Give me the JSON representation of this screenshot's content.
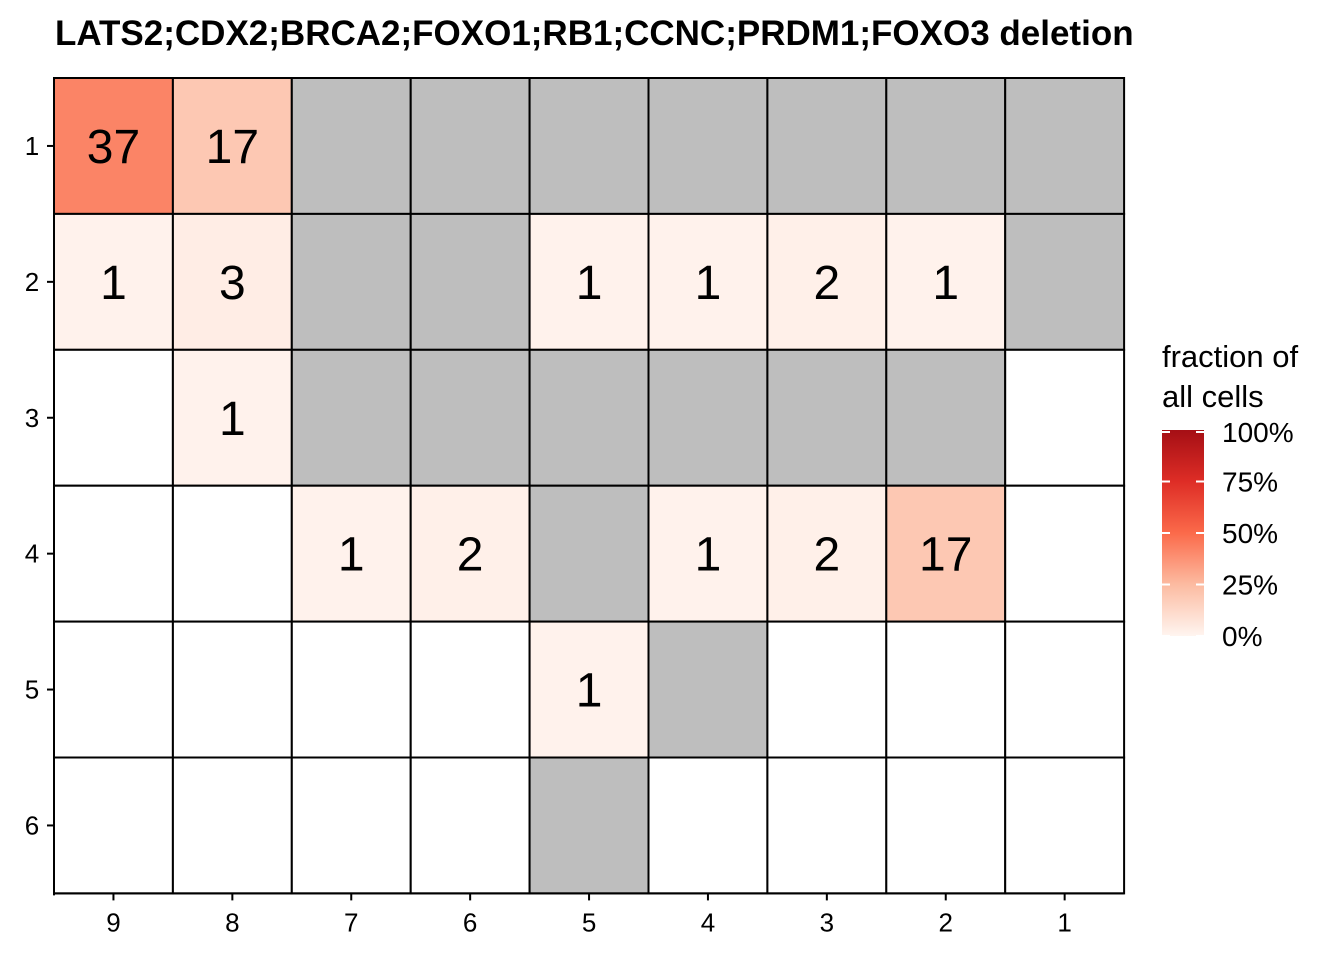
{
  "chart_data": {
    "type": "heatmap",
    "title": "LATS2;CDX2;BRCA2;FOXO1;RB1;CCNC;PRDM1;FOXO3 deletion",
    "x_categories": [
      "9",
      "8",
      "7",
      "6",
      "5",
      "4",
      "3",
      "2",
      "1"
    ],
    "y_categories": [
      "1",
      "2",
      "3",
      "4",
      "5",
      "6"
    ],
    "missing_color": "#bebebe",
    "empty_color": "#ffffff",
    "cells": [
      {
        "x": "9",
        "y": "1",
        "value": 37
      },
      {
        "x": "8",
        "y": "1",
        "value": 17
      },
      {
        "x": "7",
        "y": "1",
        "value": null
      },
      {
        "x": "6",
        "y": "1",
        "value": null
      },
      {
        "x": "5",
        "y": "1",
        "value": null
      },
      {
        "x": "4",
        "y": "1",
        "value": null
      },
      {
        "x": "3",
        "y": "1",
        "value": null
      },
      {
        "x": "2",
        "y": "1",
        "value": null
      },
      {
        "x": "1",
        "y": "1",
        "value": null
      },
      {
        "x": "9",
        "y": "2",
        "value": 1
      },
      {
        "x": "8",
        "y": "2",
        "value": 3
      },
      {
        "x": "7",
        "y": "2",
        "value": null
      },
      {
        "x": "6",
        "y": "2",
        "value": null
      },
      {
        "x": "5",
        "y": "2",
        "value": 1
      },
      {
        "x": "4",
        "y": "2",
        "value": 1
      },
      {
        "x": "3",
        "y": "2",
        "value": 2
      },
      {
        "x": "2",
        "y": "2",
        "value": 1
      },
      {
        "x": "1",
        "y": "2",
        "value": null
      },
      {
        "x": "9",
        "y": "3",
        "value": 0
      },
      {
        "x": "8",
        "y": "3",
        "value": 1
      },
      {
        "x": "7",
        "y": "3",
        "value": null
      },
      {
        "x": "6",
        "y": "3",
        "value": null
      },
      {
        "x": "5",
        "y": "3",
        "value": null
      },
      {
        "x": "4",
        "y": "3",
        "value": null
      },
      {
        "x": "3",
        "y": "3",
        "value": null
      },
      {
        "x": "2",
        "y": "3",
        "value": null
      },
      {
        "x": "1",
        "y": "3",
        "value": 0
      },
      {
        "x": "9",
        "y": "4",
        "value": 0
      },
      {
        "x": "8",
        "y": "4",
        "value": 0
      },
      {
        "x": "7",
        "y": "4",
        "value": 1
      },
      {
        "x": "6",
        "y": "4",
        "value": 2
      },
      {
        "x": "5",
        "y": "4",
        "value": null
      },
      {
        "x": "4",
        "y": "4",
        "value": 1
      },
      {
        "x": "3",
        "y": "4",
        "value": 2
      },
      {
        "x": "2",
        "y": "4",
        "value": 17
      },
      {
        "x": "1",
        "y": "4",
        "value": 0
      },
      {
        "x": "9",
        "y": "5",
        "value": 0
      },
      {
        "x": "8",
        "y": "5",
        "value": 0
      },
      {
        "x": "7",
        "y": "5",
        "value": 0
      },
      {
        "x": "6",
        "y": "5",
        "value": 0
      },
      {
        "x": "5",
        "y": "5",
        "value": 1
      },
      {
        "x": "4",
        "y": "5",
        "value": null
      },
      {
        "x": "3",
        "y": "5",
        "value": 0
      },
      {
        "x": "2",
        "y": "5",
        "value": 0
      },
      {
        "x": "1",
        "y": "5",
        "value": 0
      },
      {
        "x": "9",
        "y": "6",
        "value": 0
      },
      {
        "x": "8",
        "y": "6",
        "value": 0
      },
      {
        "x": "7",
        "y": "6",
        "value": 0
      },
      {
        "x": "6",
        "y": "6",
        "value": 0
      },
      {
        "x": "5",
        "y": "6",
        "value": null
      },
      {
        "x": "4",
        "y": "6",
        "value": 0
      },
      {
        "x": "3",
        "y": "6",
        "value": 0
      },
      {
        "x": "2",
        "y": "6",
        "value": 0
      },
      {
        "x": "1",
        "y": "6",
        "value": 0
      }
    ],
    "legend": {
      "title_lines": [
        "fraction of",
        "all cells"
      ],
      "tick_labels": [
        "100%",
        "75%",
        "50%",
        "25%",
        "0%"
      ],
      "tick_values": [
        1,
        0.75,
        0.5,
        0.25,
        0
      ],
      "color_low": "#fff5f0",
      "color_mid": "#fb6a4a",
      "color_high": "#a50f15",
      "placement": "right"
    }
  }
}
